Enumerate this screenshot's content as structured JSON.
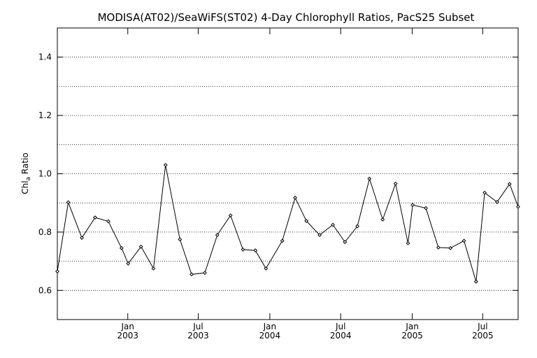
{
  "chart_data": {
    "type": "line",
    "title": "MODISA(AT02)/SeaWiFS(ST02) 4-Day Chlorophyll Ratios, PacS25 Subset",
    "ylabel": "Chl",
    "ylabel_sub": "a",
    "ylabel_tail": " Ratio",
    "ylim": [
      0.5,
      1.5
    ],
    "y_ticks": [
      0.6,
      0.8,
      1.0,
      1.2,
      1.4
    ],
    "y_tick_labels": [
      "0.6",
      "0.8",
      "1.0",
      "1.2",
      "1.4"
    ],
    "y_gridlines": [
      0.6,
      0.7,
      0.8,
      0.9,
      1.0,
      1.1,
      1.2,
      1.3,
      1.4
    ],
    "grid": true,
    "xlim": [
      "2002-07-04",
      "2005-09-30"
    ],
    "x_ticks": [
      {
        "date": "2003-01-01",
        "month": "Jan",
        "year": "2003"
      },
      {
        "date": "2003-07-01",
        "month": "Jul",
        "year": "2003"
      },
      {
        "date": "2004-01-01",
        "month": "Jan",
        "year": "2004"
      },
      {
        "date": "2004-07-01",
        "month": "Jul",
        "year": "2004"
      },
      {
        "date": "2005-01-01",
        "month": "Jan",
        "year": "2005"
      },
      {
        "date": "2005-07-01",
        "month": "Jul",
        "year": "2005"
      }
    ],
    "series": [
      {
        "x": [
          "2002-07-04",
          "2002-08-01",
          "2002-09-05",
          "2002-10-09",
          "2002-11-12",
          "2002-12-16",
          "2003-01-02",
          "2003-02-04",
          "2003-03-08",
          "2003-04-08",
          "2003-05-15",
          "2003-06-14",
          "2003-07-18",
          "2003-08-19",
          "2003-09-22",
          "2003-10-24",
          "2003-11-25",
          "2003-12-22",
          "2004-02-02",
          "2004-03-06",
          "2004-04-04",
          "2004-05-08",
          "2004-06-11",
          "2004-07-12",
          "2004-08-13",
          "2004-09-13",
          "2004-10-17",
          "2004-11-19",
          "2004-12-21",
          "2005-01-02",
          "2005-02-05",
          "2005-03-09",
          "2005-04-09",
          "2005-05-14",
          "2005-06-14",
          "2005-07-06",
          "2005-08-07",
          "2005-09-08",
          "2005-09-30"
        ],
        "y": [
          0.665,
          0.902,
          0.78,
          0.85,
          0.837,
          0.745,
          0.692,
          0.75,
          0.675,
          1.03,
          0.775,
          0.655,
          0.66,
          0.79,
          0.857,
          0.74,
          0.737,
          0.675,
          0.77,
          0.918,
          0.838,
          0.79,
          0.825,
          0.766,
          0.82,
          0.983,
          0.843,
          0.966,
          0.762,
          0.893,
          0.882,
          0.747,
          0.745,
          0.77,
          0.63,
          0.935,
          0.903,
          0.965,
          0.887
        ]
      }
    ]
  }
}
